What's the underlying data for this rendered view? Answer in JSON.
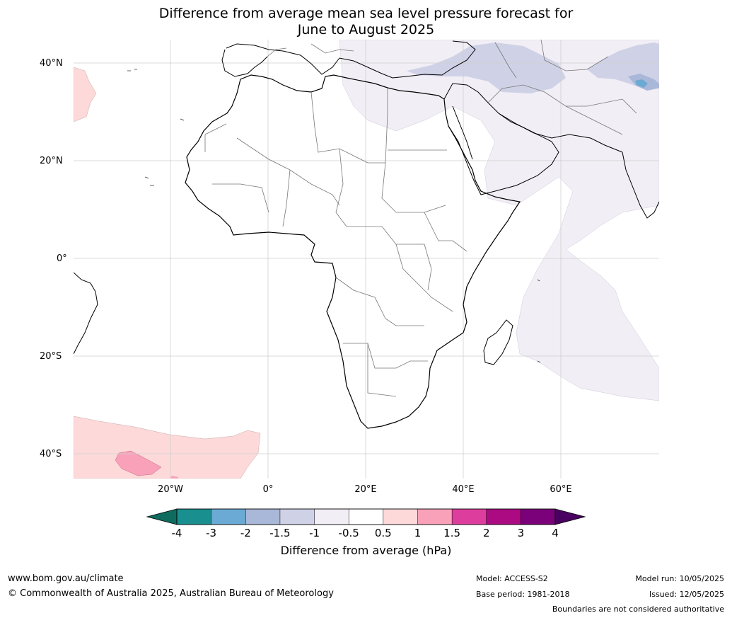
{
  "title": {
    "line1": "Difference from average mean sea level pressure forecast for",
    "line2": "June to August 2025"
  },
  "axes": {
    "lat_labels": [
      "40°N",
      "20°N",
      "0°",
      "20°S",
      "40°S"
    ],
    "lon_labels": [
      "20°W",
      "0°",
      "20°E",
      "40°E",
      "60°E"
    ]
  },
  "colorbar": {
    "ticks": [
      "-4",
      "-3",
      "-2",
      "-1.5",
      "-1",
      "-0.5",
      "0.5",
      "1",
      "1.5",
      "2",
      "3",
      "4"
    ],
    "colors": [
      "#1a8f8f",
      "#6aaad4",
      "#a9b8d8",
      "#cfd2e6",
      "#f2eef5",
      "#ffffff",
      "#fdd9d9",
      "#f9a1b9",
      "#dd3d9c",
      "#ab0a82",
      "#7a017a"
    ],
    "under_color": "#0f6b5e",
    "over_color": "#4a0060",
    "label": "Difference from average (hPa)"
  },
  "footer": {
    "website": "www.bom.gov.au/climate",
    "copyright": "© Commonwealth of Australia 2025, Australian Bureau of Meteorology",
    "model": "Model: ACCESS-S2",
    "base_period": "Base period: 1981-2018",
    "model_run": "Model run: 10/05/2025",
    "issued": "Issued: 12/05/2025",
    "disclaimer": "Boundaries are not considered authoritative"
  }
}
